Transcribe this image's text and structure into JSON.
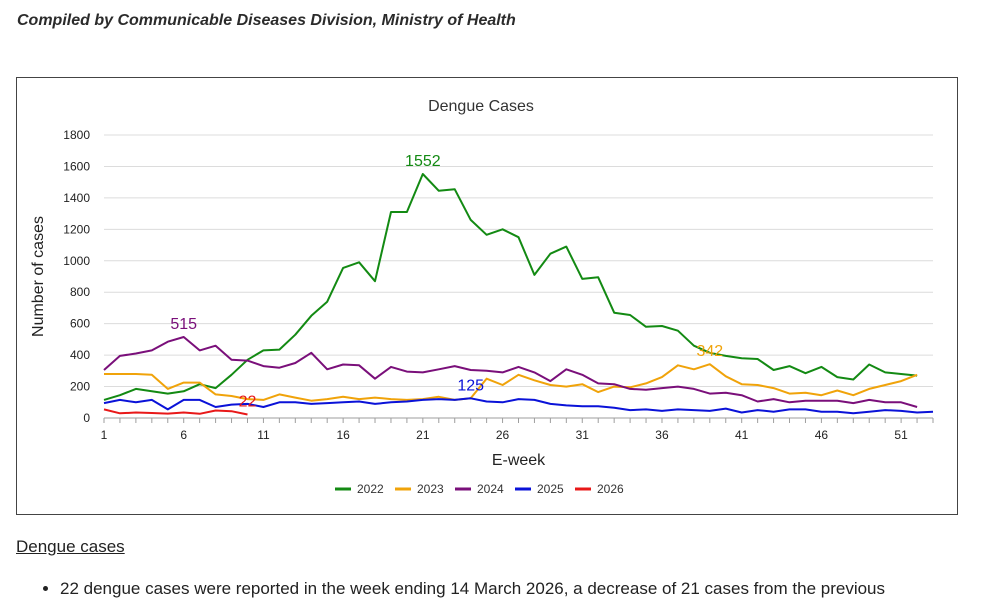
{
  "page": {
    "credit": "Compiled by Communicable Diseases Division, Ministry of Health",
    "section_heading": "Dengue cases",
    "bullets": [
      "22 dengue cases were reported in the week ending 14 March 2026, a decrease of 21 cases from the previous"
    ]
  },
  "chart_data": {
    "type": "line",
    "title": "Dengue Cases",
    "xlabel": "E-week",
    "ylabel": "Number of cases",
    "xlim": [
      1,
      53
    ],
    "ylim": [
      0,
      1800
    ],
    "xticks": [
      1,
      6,
      11,
      16,
      21,
      26,
      31,
      36,
      41,
      46,
      51
    ],
    "yticks": [
      0,
      200,
      400,
      600,
      800,
      1000,
      1200,
      1400,
      1600,
      1800
    ],
    "grid": "horizontal",
    "legend_position": "bottom",
    "series": [
      {
        "name": "2022",
        "color": "#138a13",
        "x": [
          1,
          2,
          3,
          4,
          5,
          6,
          7,
          8,
          9,
          10,
          11,
          12,
          13,
          14,
          15,
          16,
          17,
          18,
          19,
          20,
          21,
          22,
          23,
          24,
          25,
          26,
          27,
          28,
          29,
          30,
          31,
          32,
          33,
          34,
          35,
          36,
          37,
          38,
          39,
          40,
          41,
          42,
          43,
          44,
          45,
          46,
          47,
          48,
          49,
          50,
          51,
          52
        ],
        "values": [
          115,
          145,
          185,
          170,
          155,
          170,
          215,
          190,
          275,
          370,
          430,
          435,
          530,
          650,
          740,
          955,
          990,
          870,
          1310,
          1310,
          1552,
          1445,
          1455,
          1260,
          1165,
          1200,
          1150,
          910,
          1045,
          1090,
          885,
          895,
          670,
          655,
          580,
          585,
          555,
          460,
          415,
          395,
          380,
          375,
          305,
          330,
          285,
          325,
          260,
          245,
          340,
          290,
          280,
          270
        ]
      },
      {
        "name": "2023",
        "color": "#f0a30a",
        "x": [
          1,
          2,
          3,
          4,
          5,
          6,
          7,
          8,
          9,
          10,
          11,
          12,
          13,
          14,
          15,
          16,
          17,
          18,
          19,
          20,
          21,
          22,
          23,
          24,
          25,
          26,
          27,
          28,
          29,
          30,
          31,
          32,
          33,
          34,
          35,
          36,
          37,
          38,
          39,
          40,
          41,
          42,
          43,
          44,
          45,
          46,
          47,
          48,
          49,
          50,
          51,
          52
        ],
        "values": [
          280,
          280,
          280,
          275,
          185,
          225,
          225,
          150,
          140,
          120,
          115,
          150,
          130,
          110,
          120,
          135,
          120,
          130,
          120,
          115,
          120,
          135,
          115,
          125,
          250,
          210,
          275,
          240,
          210,
          200,
          215,
          165,
          200,
          195,
          220,
          260,
          335,
          310,
          342,
          265,
          215,
          210,
          190,
          155,
          160,
          145,
          175,
          145,
          185,
          210,
          235,
          275
        ]
      },
      {
        "name": "2024",
        "color": "#7a0f7a",
        "x": [
          1,
          2,
          3,
          4,
          5,
          6,
          7,
          8,
          9,
          10,
          11,
          12,
          13,
          14,
          15,
          16,
          17,
          18,
          19,
          20,
          21,
          22,
          23,
          24,
          25,
          26,
          27,
          28,
          29,
          30,
          31,
          32,
          33,
          34,
          35,
          36,
          37,
          38,
          39,
          40,
          41,
          42,
          43,
          44,
          45,
          46,
          47,
          48,
          49,
          50,
          51,
          52
        ],
        "values": [
          305,
          395,
          410,
          430,
          485,
          515,
          430,
          460,
          370,
          365,
          330,
          320,
          350,
          415,
          310,
          340,
          335,
          250,
          325,
          295,
          290,
          310,
          330,
          305,
          300,
          290,
          325,
          290,
          235,
          310,
          275,
          220,
          215,
          185,
          180,
          190,
          200,
          185,
          155,
          160,
          145,
          105,
          120,
          100,
          110,
          110,
          110,
          95,
          115,
          100,
          100,
          70
        ]
      },
      {
        "name": "2025",
        "color": "#0a12d8",
        "x": [
          1,
          2,
          3,
          4,
          5,
          6,
          7,
          8,
          9,
          10,
          11,
          12,
          13,
          14,
          15,
          16,
          17,
          18,
          19,
          20,
          21,
          22,
          23,
          24,
          25,
          26,
          27,
          28,
          29,
          30,
          31,
          32,
          33,
          34,
          35,
          36,
          37,
          38,
          39,
          40,
          41,
          42,
          43,
          44,
          45,
          46,
          47,
          48,
          49,
          50,
          51,
          52,
          53
        ],
        "values": [
          95,
          115,
          100,
          115,
          55,
          115,
          115,
          70,
          85,
          90,
          70,
          100,
          100,
          90,
          95,
          100,
          105,
          90,
          100,
          105,
          115,
          120,
          115,
          125,
          105,
          100,
          120,
          115,
          90,
          80,
          75,
          75,
          65,
          50,
          55,
          45,
          55,
          50,
          45,
          60,
          35,
          50,
          40,
          55,
          55,
          40,
          40,
          30,
          40,
          50,
          45,
          35,
          40
        ]
      },
      {
        "name": "2026",
        "color": "#e81818",
        "x": [
          1,
          2,
          3,
          4,
          5,
          6,
          7,
          8,
          9,
          10
        ],
        "values": [
          55,
          30,
          35,
          32,
          28,
          35,
          27,
          48,
          43,
          22
        ]
      }
    ],
    "annotations": [
      {
        "text": "1552",
        "series": "2022",
        "x": 21,
        "y": 1552
      },
      {
        "text": "515",
        "series": "2024",
        "x": 6,
        "y": 515
      },
      {
        "text": "342",
        "series": "2023",
        "x": 39,
        "y": 342
      },
      {
        "text": "125",
        "series": "2025",
        "x": 24,
        "y": 125
      },
      {
        "text": "22",
        "series": "2026",
        "x": 10,
        "y": 22
      }
    ]
  }
}
